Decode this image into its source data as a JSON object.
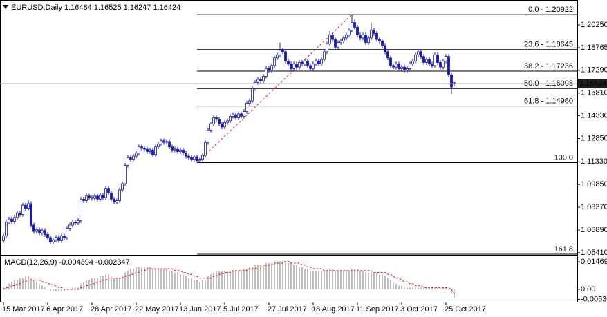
{
  "chart_data": [
    {
      "type": "candlestick",
      "title": "EURUSD,Daily  1.16484 1.16525 1.16247 1.16424",
      "candle_color": "#1a1aa0",
      "open": [
        1.062,
        1.065,
        1.074,
        1.076,
        1.0745,
        1.077,
        1.08,
        1.079,
        1.085,
        1.083,
        1.086,
        1.072,
        1.068,
        1.069,
        1.067,
        1.0685,
        1.066,
        1.064,
        1.061,
        1.0625,
        1.064,
        1.062,
        1.065,
        1.064,
        1.07,
        1.072,
        1.074,
        1.0735,
        1.075,
        1.089,
        1.088,
        1.091,
        1.09,
        1.0895,
        1.091,
        1.089,
        1.0915,
        1.09,
        1.096,
        1.093,
        1.089,
        1.087,
        1.088,
        1.095,
        1.099,
        1.111,
        1.116,
        1.115,
        1.117,
        1.119,
        1.123,
        1.122,
        1.1215,
        1.12,
        1.121,
        1.118,
        1.123,
        1.125,
        1.127,
        1.126,
        1.1265,
        1.123,
        1.121,
        1.1215,
        1.12,
        1.121,
        1.119,
        1.117,
        1.116,
        1.115,
        1.1165,
        1.114,
        1.115,
        1.1175,
        1.126,
        1.134,
        1.138,
        1.142,
        1.141,
        1.138,
        1.136,
        1.139,
        1.14,
        1.143,
        1.144,
        1.142,
        1.1445,
        1.143,
        1.146,
        1.1515,
        1.153,
        1.161,
        1.165,
        1.167,
        1.166,
        1.169,
        1.174,
        1.173,
        1.176,
        1.181,
        1.183,
        1.186,
        1.185,
        1.179,
        1.177,
        1.174,
        1.177,
        1.175,
        1.178,
        1.177,
        1.179,
        1.176,
        1.174,
        1.177,
        1.179,
        1.177,
        1.18,
        1.185,
        1.19,
        1.196,
        1.193,
        1.188,
        1.191,
        1.192,
        1.194,
        1.196,
        1.199,
        1.204,
        1.201,
        1.196,
        1.194,
        1.196,
        1.191,
        1.194,
        1.199,
        1.197,
        1.193,
        1.192,
        1.189,
        1.185,
        1.181,
        1.176,
        1.175,
        1.177,
        1.174,
        1.175,
        1.173,
        1.174,
        1.177,
        1.179,
        1.183,
        1.185,
        1.182,
        1.178,
        1.18,
        1.177,
        1.176,
        1.183,
        1.178,
        1.175,
        1.179,
        1.182,
        1.17,
        1.16484
      ],
      "high": [
        1.0665,
        1.0755,
        1.0775,
        1.0775,
        1.0785,
        1.0815,
        1.0815,
        1.0865,
        1.0865,
        1.0885,
        1.0875,
        1.0735,
        1.0705,
        1.0705,
        1.07,
        1.07,
        1.0675,
        1.0655,
        1.064,
        1.0655,
        1.0655,
        1.0665,
        1.0665,
        1.0715,
        1.0735,
        1.0755,
        1.0755,
        1.0765,
        1.0905,
        1.0905,
        1.0925,
        1.0925,
        1.0915,
        1.0925,
        1.0925,
        1.093,
        1.093,
        1.0975,
        1.0975,
        1.0945,
        1.0905,
        1.0895,
        1.0965,
        1.1005,
        1.1125,
        1.1175,
        1.1175,
        1.1185,
        1.1205,
        1.1245,
        1.1245,
        1.1235,
        1.123,
        1.1225,
        1.1225,
        1.1245,
        1.1265,
        1.1285,
        1.1285,
        1.128,
        1.128,
        1.1245,
        1.123,
        1.123,
        1.1225,
        1.1225,
        1.1205,
        1.1185,
        1.1175,
        1.118,
        1.118,
        1.1165,
        1.119,
        1.1275,
        1.1355,
        1.1395,
        1.1435,
        1.1435,
        1.1425,
        1.1395,
        1.1405,
        1.1415,
        1.1445,
        1.1455,
        1.1455,
        1.146,
        1.146,
        1.1475,
        1.153,
        1.1545,
        1.1625,
        1.1665,
        1.1685,
        1.1685,
        1.1705,
        1.1755,
        1.1755,
        1.1775,
        1.1825,
        1.1845,
        1.191,
        1.1875,
        1.1865,
        1.1805,
        1.1785,
        1.1785,
        1.1785,
        1.1795,
        1.1795,
        1.1805,
        1.1805,
        1.1775,
        1.1785,
        1.1805,
        1.1805,
        1.1815,
        1.1865,
        1.1915,
        1.1985,
        1.1975,
        1.1945,
        1.1925,
        1.1935,
        1.1955,
        1.1975,
        1.2005,
        1.2092,
        1.206,
        1.2025,
        1.1975,
        1.1975,
        1.1975,
        1.1955,
        1.2035,
        1.2005,
        1.1985,
        1.1945,
        1.1935,
        1.1905,
        1.1865,
        1.1825,
        1.1775,
        1.1785,
        1.1785,
        1.1765,
        1.1765,
        1.1755,
        1.1785,
        1.1805,
        1.1845,
        1.1865,
        1.1865,
        1.1835,
        1.1815,
        1.1815,
        1.1785,
        1.1845,
        1.1845,
        1.1795,
        1.1805,
        1.1835,
        1.1835,
        1.1715,
        1.16525
      ],
      "low": [
        1.0605,
        1.0635,
        1.0725,
        1.073,
        1.073,
        1.0755,
        1.0775,
        1.0775,
        1.0815,
        1.0815,
        1.0705,
        1.0665,
        1.0665,
        1.0655,
        1.0655,
        1.0645,
        1.0625,
        1.0595,
        1.0595,
        1.061,
        1.0605,
        1.0605,
        1.0625,
        1.0625,
        1.0685,
        1.0705,
        1.072,
        1.072,
        1.0735,
        1.0865,
        1.0865,
        1.0885,
        1.088,
        1.088,
        1.0875,
        1.0875,
        1.0885,
        1.0885,
        1.0915,
        1.0875,
        1.0855,
        1.0855,
        1.0865,
        1.0935,
        1.0975,
        1.1095,
        1.1135,
        1.1135,
        1.1155,
        1.1175,
        1.1205,
        1.12,
        1.1185,
        1.1185,
        1.1165,
        1.1165,
        1.1215,
        1.1235,
        1.1245,
        1.1245,
        1.1215,
        1.1195,
        1.1195,
        1.1185,
        1.1185,
        1.1175,
        1.1155,
        1.1145,
        1.1135,
        1.1135,
        1.1128,
        1.113,
        1.1135,
        1.116,
        1.1245,
        1.1325,
        1.1365,
        1.1395,
        1.1365,
        1.1345,
        1.1345,
        1.1375,
        1.1385,
        1.1415,
        1.1405,
        1.1405,
        1.1415,
        1.1415,
        1.1445,
        1.15,
        1.1515,
        1.1595,
        1.1635,
        1.1645,
        1.1645,
        1.1675,
        1.1715,
        1.1715,
        1.1745,
        1.1795,
        1.1815,
        1.1835,
        1.1775,
        1.1755,
        1.1725,
        1.1725,
        1.1735,
        1.1735,
        1.1755,
        1.1755,
        1.1745,
        1.1725,
        1.1725,
        1.1755,
        1.1755,
        1.1755,
        1.1785,
        1.1835,
        1.1885,
        1.1915,
        1.1865,
        1.1865,
        1.1895,
        1.1905,
        1.1925,
        1.1945,
        1.1975,
        1.1995,
        1.1945,
        1.1925,
        1.1925,
        1.1895,
        1.1895,
        1.1925,
        1.1955,
        1.1915,
        1.1905,
        1.1875,
        1.1835,
        1.1795,
        1.1745,
        1.1735,
        1.1735,
        1.1725,
        1.1725,
        1.1715,
        1.1715,
        1.1725,
        1.1755,
        1.1775,
        1.1815,
        1.1805,
        1.1765,
        1.1765,
        1.1755,
        1.1745,
        1.1745,
        1.1765,
        1.1735,
        1.1735,
        1.1775,
        1.1685,
        1.1575,
        1.16247
      ],
      "close": [
        1.065,
        1.074,
        1.076,
        1.0745,
        1.077,
        1.08,
        1.079,
        1.085,
        1.083,
        1.086,
        1.072,
        1.068,
        1.069,
        1.067,
        1.0685,
        1.066,
        1.064,
        1.061,
        1.0625,
        1.064,
        1.062,
        1.065,
        1.064,
        1.07,
        1.072,
        1.074,
        1.0735,
        1.075,
        1.089,
        1.088,
        1.091,
        1.09,
        1.0895,
        1.091,
        1.089,
        1.0915,
        1.09,
        1.096,
        1.093,
        1.089,
        1.087,
        1.088,
        1.095,
        1.099,
        1.111,
        1.116,
        1.115,
        1.117,
        1.119,
        1.123,
        1.122,
        1.1215,
        1.12,
        1.121,
        1.118,
        1.123,
        1.125,
        1.127,
        1.126,
        1.1265,
        1.123,
        1.121,
        1.1215,
        1.12,
        1.121,
        1.119,
        1.117,
        1.116,
        1.115,
        1.1165,
        1.114,
        1.115,
        1.1175,
        1.126,
        1.134,
        1.138,
        1.142,
        1.141,
        1.138,
        1.136,
        1.139,
        1.14,
        1.143,
        1.144,
        1.142,
        1.1445,
        1.143,
        1.146,
        1.1515,
        1.153,
        1.161,
        1.165,
        1.167,
        1.166,
        1.169,
        1.174,
        1.173,
        1.176,
        1.181,
        1.183,
        1.186,
        1.185,
        1.179,
        1.177,
        1.174,
        1.177,
        1.175,
        1.178,
        1.177,
        1.179,
        1.176,
        1.174,
        1.177,
        1.179,
        1.177,
        1.18,
        1.185,
        1.19,
        1.196,
        1.193,
        1.188,
        1.191,
        1.192,
        1.194,
        1.196,
        1.199,
        1.204,
        1.201,
        1.196,
        1.194,
        1.196,
        1.191,
        1.194,
        1.199,
        1.197,
        1.193,
        1.192,
        1.189,
        1.185,
        1.181,
        1.176,
        1.175,
        1.177,
        1.174,
        1.175,
        1.173,
        1.174,
        1.177,
        1.179,
        1.183,
        1.185,
        1.182,
        1.178,
        1.18,
        1.177,
        1.176,
        1.183,
        1.178,
        1.175,
        1.179,
        1.182,
        1.17,
        1.162,
        1.16424
      ],
      "xlim": [
        -1.25,
        207.5
      ],
      "xticks": [
        {
          "value": 0,
          "label": "15 Mar 2017"
        },
        {
          "value": 16,
          "label": "6 Apr 2017"
        },
        {
          "value": 32,
          "label": "28 Apr 2017"
        },
        {
          "value": 48,
          "label": "22 May 2017"
        },
        {
          "value": 64,
          "label": "13 Jun 2017"
        },
        {
          "value": 80,
          "label": "5 Jul 2017"
        },
        {
          "value": 96,
          "label": "27 Jul 2017"
        },
        {
          "value": 112,
          "label": "18 Aug 2017"
        },
        {
          "value": 128,
          "label": "11 Sep 2017"
        },
        {
          "value": 144,
          "label": "3 Oct 2017"
        },
        {
          "value": 160,
          "label": "25 Oct 2017"
        }
      ],
      "ylim": [
        1.0527,
        1.2178
      ],
      "yticks": [
        {
          "value": 1.2025,
          "label": "1.20250"
        },
        1.18765,
        {
          "value": 1.1729,
          "label": "1.17290"
        },
        {
          "value": 1.1581,
          "label": "1.15810"
        },
        {
          "value": 1.1433,
          "label": "1.14330"
        },
        {
          "value": 1.1285,
          "label": "1.12850"
        },
        {
          "value": 1.1133,
          "label": "1.11330"
        },
        {
          "value": 1.0985,
          "label": "1.09850"
        },
        {
          "value": 1.0837,
          "label": "1.08370"
        },
        {
          "value": 1.0689,
          "label": "1.06890"
        },
        {
          "value": 1.0541,
          "label": "1.05410"
        }
      ],
      "fib": {
        "color": "#000000",
        "trend_color": "#e02020",
        "x_range": [
          70,
          126
        ],
        "levels": [
          {
            "label": "0.0 - 1.20922",
            "value": 1.20922
          },
          {
            "label": "23.6 - 1.18645",
            "value": 1.18645
          },
          {
            "label": "38.2 - 1.17236",
            "value": 1.17236
          },
          {
            "label": "50.0 - 1.16098",
            "value": 1.16098
          },
          {
            "label": "61.8 - 1.14960",
            "value": 1.1496
          },
          {
            "label": "100.0",
            "value": 1.11275
          },
          {
            "label": "161.8",
            "value": 1.05313
          }
        ]
      }
    },
    {
      "type": "macd",
      "title": "MACD(12,26,9) -0.004394 -0.002347",
      "color": "#a8a8a8",
      "signal_color": "#e02020",
      "values": [
        0.001,
        0.002,
        0.003,
        0.004,
        0.005,
        0.005,
        0.006,
        0.006,
        0.007,
        0.007,
        0.006,
        0.005,
        0.004,
        0.003,
        0.002,
        0.001,
        0,
        -0.001,
        -0.001,
        -0.001,
        -0.001,
        -0.001,
        -0.001,
        0,
        0,
        0.001,
        0.001,
        0.001,
        0.003,
        0.004,
        0.005,
        0.005,
        0.006,
        0.006,
        0.006,
        0.007,
        0.007,
        0.008,
        0.008,
        0.007,
        0.006,
        0.006,
        0.006,
        0.007,
        0.009,
        0.01,
        0.011,
        0.011,
        0.012,
        0.012,
        0.012,
        0.012,
        0.012,
        0.012,
        0.011,
        0.011,
        0.011,
        0.011,
        0.011,
        0.011,
        0.01,
        0.01,
        0.009,
        0.009,
        0.008,
        0.008,
        0.007,
        0.006,
        0.006,
        0.005,
        0.005,
        0.004,
        0.005,
        0.005,
        0.007,
        0.008,
        0.009,
        0.01,
        0.01,
        0.01,
        0.01,
        0.01,
        0.01,
        0.01,
        0.01,
        0.01,
        0.01,
        0.011,
        0.011,
        0.012,
        0.012,
        0.013,
        0.013,
        0.013,
        0.013,
        0.014,
        0.014,
        0.014,
        0.015,
        0.015,
        0.015,
        0.015,
        0.015,
        0.014,
        0.014,
        0.013,
        0.013,
        0.012,
        0.012,
        0.011,
        0.011,
        0.01,
        0.01,
        0.01,
        0.01,
        0.01,
        0.01,
        0.01,
        0.011,
        0.011,
        0.01,
        0.01,
        0.01,
        0.01,
        0.01,
        0.01,
        0.011,
        0.011,
        0.011,
        0.01,
        0.01,
        0.009,
        0.009,
        0.009,
        0.009,
        0.009,
        0.008,
        0.008,
        0.007,
        0.006,
        0.005,
        0.004,
        0.003,
        0.002,
        0.002,
        0.001,
        0.001,
        0.001,
        0.001,
        0.001,
        0.001,
        0.001,
        0.001,
        0.001,
        0.001,
        0.001,
        0.001,
        0.001,
        0.001,
        0.001,
        0.001,
        0,
        -0.002,
        -0.004394
      ],
      "signal": [
        0,
        0.001,
        0.001,
        0.002,
        0.002,
        0.003,
        0.003,
        0.004,
        0.004,
        0.005,
        0.005,
        0.005,
        0.005,
        0.005,
        0.004,
        0.004,
        0.003,
        0.003,
        0.002,
        0.002,
        0.001,
        0.001,
        0,
        0,
        0,
        0,
        0,
        0,
        0.001,
        0.001,
        0.002,
        0.002,
        0.003,
        0.003,
        0.004,
        0.004,
        0.005,
        0.005,
        0.006,
        0.006,
        0.006,
        0.006,
        0.006,
        0.006,
        0.007,
        0.007,
        0.008,
        0.008,
        0.009,
        0.009,
        0.01,
        0.01,
        0.011,
        0.011,
        0.011,
        0.011,
        0.011,
        0.011,
        0.011,
        0.011,
        0.011,
        0.011,
        0.01,
        0.01,
        0.01,
        0.009,
        0.009,
        0.008,
        0.008,
        0.007,
        0.007,
        0.006,
        0.006,
        0.006,
        0.006,
        0.006,
        0.007,
        0.007,
        0.008,
        0.008,
        0.009,
        0.009,
        0.009,
        0.01,
        0.01,
        0.01,
        0.01,
        0.01,
        0.01,
        0.011,
        0.011,
        0.011,
        0.012,
        0.012,
        0.012,
        0.013,
        0.013,
        0.013,
        0.014,
        0.014,
        0.014,
        0.014,
        0.015,
        0.015,
        0.014,
        0.014,
        0.014,
        0.014,
        0.013,
        0.013,
        0.012,
        0.012,
        0.011,
        0.011,
        0.011,
        0.011,
        0.01,
        0.01,
        0.01,
        0.01,
        0.01,
        0.01,
        0.01,
        0.01,
        0.01,
        0.01,
        0.01,
        0.01,
        0.01,
        0.01,
        0.01,
        0.01,
        0.01,
        0.01,
        0.009,
        0.009,
        0.009,
        0.009,
        0.009,
        0.008,
        0.008,
        0.007,
        0.006,
        0.006,
        0.005,
        0.004,
        0.004,
        0.003,
        0.003,
        0.002,
        0.002,
        0.002,
        0.001,
        0.001,
        0.001,
        0.001,
        0.001,
        0.001,
        0.001,
        0.001,
        0.001,
        0.001,
        0,
        -0.002347
      ],
      "ylim": [
        -0.0066,
        0.0173
      ],
      "yticks": [
        0.014696,
        {
          "value": 0,
          "label": "0.00"
        },
        -0.005303
      ]
    }
  ]
}
